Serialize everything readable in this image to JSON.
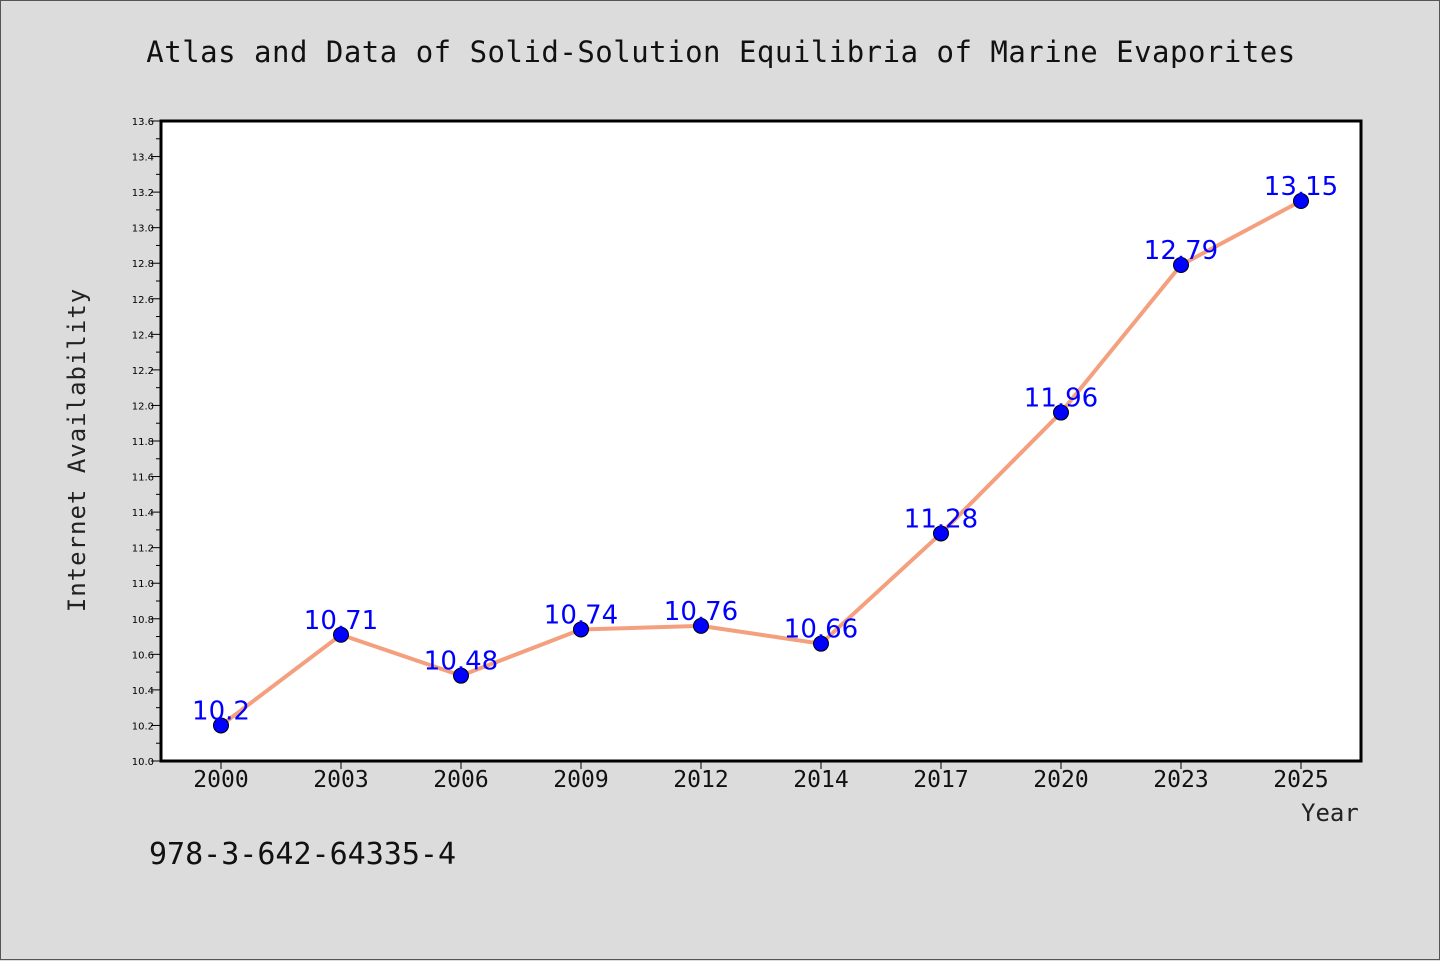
{
  "chart_data": {
    "type": "line",
    "title": "Atlas and Data of Solid-Solution Equilibria of Marine Evaporites",
    "xlabel": "Year",
    "ylabel": "Internet Availability",
    "categories": [
      "2000",
      "2003",
      "2006",
      "2009",
      "2012",
      "2014",
      "2017",
      "2020",
      "2023",
      "2025"
    ],
    "series": [
      {
        "values": [
          10.2,
          10.71,
          10.48,
          10.74,
          10.76,
          10.66,
          11.28,
          11.96,
          12.79,
          13.15
        ],
        "labels": [
          "10.2",
          "10.71",
          "10.48",
          "10.74",
          "10.76",
          "10.66",
          "11.28",
          "11.96",
          "12.79",
          "13.15"
        ],
        "line_color": "#f4a07f",
        "marker_color": "#0000ff",
        "label_color": "#0000ff"
      }
    ],
    "ylim": [
      10.0,
      13.6
    ],
    "yticks": [
      "10.0",
      "10.2",
      "10.4",
      "10.6",
      "10.8",
      "11.0",
      "11.2",
      "11.4",
      "11.6",
      "11.8",
      "12.0",
      "12.2",
      "12.4",
      "12.6",
      "12.8",
      "13.0",
      "13.2",
      "13.4",
      "13.6"
    ],
    "grid": false,
    "legend": "none"
  },
  "footnote": "978-3-642-64335-4",
  "colors": {
    "background": "#dcdcdc",
    "plot_background": "#ffffff"
  }
}
